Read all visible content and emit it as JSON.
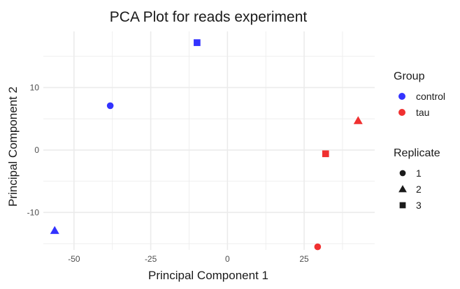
{
  "chart_data": {
    "type": "scatter",
    "title": "PCA Plot for reads experiment",
    "xlabel": "Principal Component 1",
    "ylabel": "Principal Component 2",
    "xlim": [
      -60,
      48
    ],
    "ylim": [
      -16,
      19
    ],
    "x_ticks": [
      -50,
      -25,
      0,
      25
    ],
    "x_tick_labels": [
      "-50",
      "-25",
      "0",
      "25"
    ],
    "y_ticks": [
      -10,
      0,
      10
    ],
    "y_tick_labels": [
      "-10",
      "0",
      "10"
    ],
    "grid": true,
    "group_legend": {
      "title": "Group",
      "items": [
        {
          "label": "control",
          "color": "#3333ff"
        },
        {
          "label": "tau",
          "color": "#f03030"
        }
      ]
    },
    "replicate_legend": {
      "title": "Replicate",
      "items": [
        {
          "label": "1",
          "shape": "circle"
        },
        {
          "label": "2",
          "shape": "triangle"
        },
        {
          "label": "3",
          "shape": "square"
        }
      ]
    },
    "points": [
      {
        "x": -38.2,
        "y": 7.1,
        "group": "control",
        "replicate": "1"
      },
      {
        "x": -56.3,
        "y": -12.9,
        "group": "control",
        "replicate": "2"
      },
      {
        "x": -9.9,
        "y": 17.2,
        "group": "control",
        "replicate": "3"
      },
      {
        "x": 29.4,
        "y": -15.5,
        "group": "tau",
        "replicate": "1"
      },
      {
        "x": 42.6,
        "y": 4.7,
        "group": "tau",
        "replicate": "2"
      },
      {
        "x": 32.0,
        "y": -0.6,
        "group": "tau",
        "replicate": "3"
      }
    ]
  }
}
